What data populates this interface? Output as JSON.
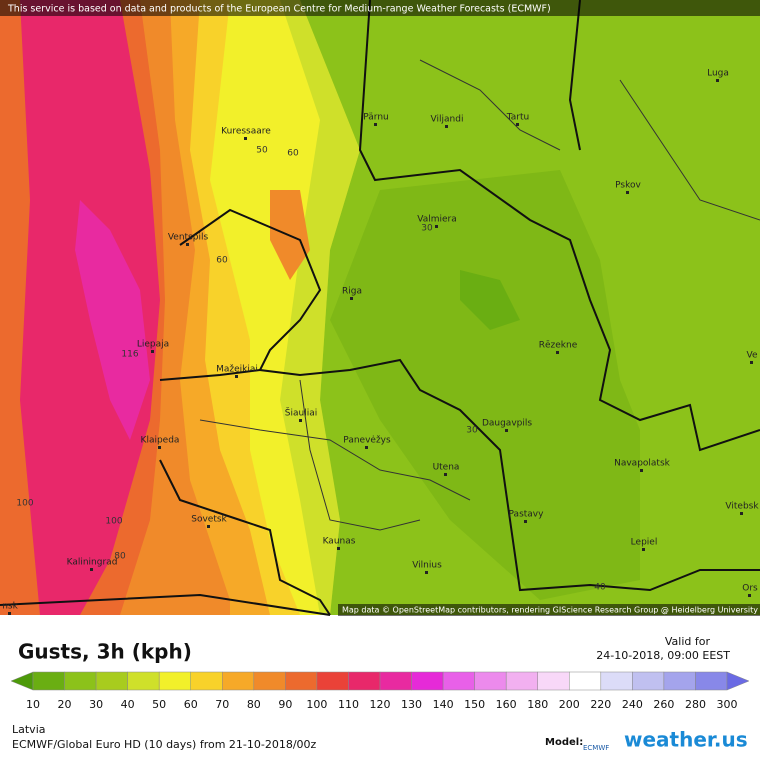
{
  "banner": "This service is based on data and products of the European Centre for Medium-range Weather Forecasts (ECMWF)",
  "attribution": "Map data © OpenStreetMap contributors, rendering GIScience Research Group @ Heidelberg University",
  "cities": [
    "Luga",
    "Pärnu",
    "Viljandi",
    "Tartu",
    "Kuressaare",
    "Pskov",
    "Valmiera",
    "Ventspils",
    "Riga",
    "Liepaja",
    "Rēzekne",
    "Mažeikiai",
    "Šiauliai",
    "Panevėžys",
    "Daugavpils",
    "Klaipeda",
    "Utena",
    "Navapolatsk",
    "Vitebsk",
    "Sovetsk",
    "Pastavy",
    "Kaunas",
    "Lepiel",
    "Kaliningrad",
    "Vilnius",
    "Ors",
    "nsk",
    "Ve"
  ],
  "contour_labels": [
    50,
    60,
    60,
    30,
    116,
    100,
    100,
    80,
    30,
    40
  ],
  "legend": {
    "title": "Gusts, 3h (kph)",
    "valid_label": "Valid for",
    "valid_time": "24-10-2018, 09:00 EEST",
    "ticks": [
      10,
      20,
      30,
      40,
      50,
      60,
      70,
      80,
      90,
      100,
      110,
      120,
      130,
      140,
      150,
      160,
      180,
      200,
      220,
      240,
      260,
      280,
      300
    ],
    "colors": [
      "#4d9a0a",
      "#6aae12",
      "#8cc21a",
      "#a8cc1e",
      "#cfe02a",
      "#f2f02a",
      "#f8d22a",
      "#f6a928",
      "#f08a2a",
      "#ec6a2e",
      "#ea4238",
      "#e8286a",
      "#e82aa0",
      "#e62ad8",
      "#e860e8",
      "#ec8aec",
      "#f2b0f0",
      "#f8d8f8",
      "#ffffff",
      "#dcdcf8",
      "#c0c0f0",
      "#a4a4ec",
      "#8888e8",
      "#6a6ae4"
    ]
  },
  "footer": {
    "region": "Latvia",
    "model_run": "ECMWF/Global Euro HD (10 days) from 21-10-2018/00z",
    "model_label": "Model:",
    "model_name": "ECMWF",
    "brand": "weather.us"
  }
}
